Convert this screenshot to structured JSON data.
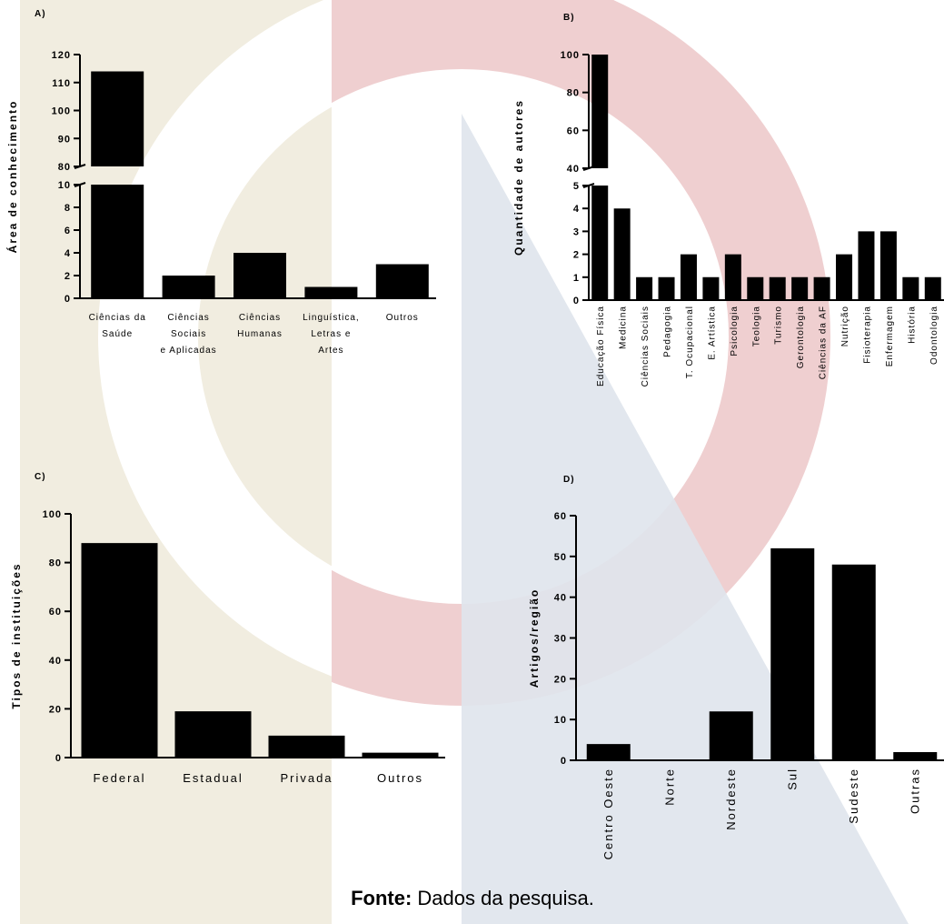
{
  "chart_data": [
    {
      "type": "bar",
      "title": "A)",
      "y_label": "Área de conhecimento",
      "categories": [
        [
          "Ciências da",
          "Saúde"
        ],
        [
          "Ciências",
          "Sociais",
          "e Aplicadas"
        ],
        [
          "Ciências",
          "Humanas"
        ],
        [
          "Linguística,",
          "Letras e",
          "Artes"
        ],
        [
          "Outros"
        ]
      ],
      "values": [
        114,
        2,
        4,
        1,
        3
      ],
      "color": "#000000",
      "ylim": [
        0,
        120
      ],
      "axis_break": [
        10,
        80
      ],
      "yticks": [
        0,
        2,
        4,
        6,
        8,
        10,
        80,
        90,
        100,
        110,
        120
      ],
      "x_label_rotation": 0
    },
    {
      "type": "bar",
      "title": "B)",
      "y_label": "Quantidade de autores",
      "categories": [
        "Educação Física",
        "Medicina",
        "Ciências Sociais",
        "Pedagogia",
        "T. Ocupacional",
        "E. Artística",
        "Psicologia",
        "Teologia",
        "Turismo",
        "Gerontologia",
        "Ciências da AF",
        "Nutrição",
        "Fisioterapia",
        "Enfermagem",
        "História",
        "Odontologia"
      ],
      "values": [
        100,
        4,
        1,
        1,
        2,
        1,
        2,
        1,
        1,
        1,
        1,
        2,
        3,
        3,
        1,
        1
      ],
      "color": "#000000",
      "ylim": [
        0,
        100
      ],
      "axis_break": [
        5,
        40
      ],
      "yticks": [
        0,
        1,
        2,
        3,
        4,
        5,
        40,
        60,
        80,
        100
      ],
      "x_label_rotation": -90
    },
    {
      "type": "bar",
      "title": "C)",
      "y_label": "Tipos de instituições",
      "categories": [
        "Federal",
        "Estadual",
        "Privada",
        "Outros"
      ],
      "values": [
        88,
        19,
        9,
        2
      ],
      "color": "#000000",
      "ylim": [
        0,
        100
      ],
      "yticks": [
        0,
        20,
        40,
        60,
        80,
        100
      ],
      "x_label_rotation": 0
    },
    {
      "type": "bar",
      "title": "D)",
      "y_label": "Artigos/região",
      "categories": [
        "Centro Oeste",
        "Norte",
        "Nordeste",
        "Sul",
        "Sudeste",
        "Outras"
      ],
      "values": [
        4,
        0,
        12,
        52,
        48,
        2
      ],
      "color": "#000000",
      "ylim": [
        0,
        60
      ],
      "yticks": [
        0,
        10,
        20,
        30,
        40,
        50,
        60
      ],
      "x_label_rotation": -90
    }
  ],
  "source": {
    "label": "Fonte:",
    "text": "Dados da pesquisa."
  }
}
